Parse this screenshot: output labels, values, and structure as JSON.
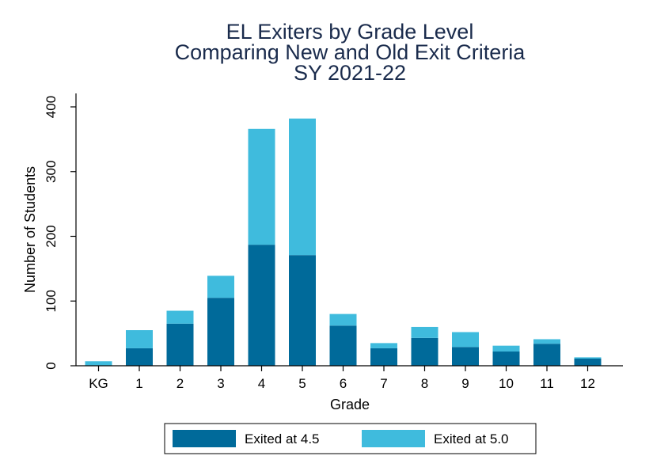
{
  "chart_data": {
    "type": "bar",
    "stacked": true,
    "title": [
      "EL Exiters by Grade Level",
      "Comparing New and Old Exit Criteria",
      "SY 2021-22"
    ],
    "xlabel": "Grade",
    "ylabel": "Number of Students",
    "ylim": [
      0,
      400
    ],
    "yticks": [
      0,
      100,
      200,
      300,
      400
    ],
    "categories": [
      "KG",
      "1",
      "2",
      "3",
      "4",
      "5",
      "6",
      "7",
      "8",
      "9",
      "10",
      "11",
      "12"
    ],
    "series": [
      {
        "name": "Exited at 4.5",
        "color": "#006a9a",
        "values": [
          0,
          27,
          65,
          105,
          187,
          171,
          62,
          27,
          43,
          29,
          22,
          34,
          11
        ]
      },
      {
        "name": "Exited at 5.0",
        "color": "#3fbbdd",
        "values": [
          7,
          28,
          20,
          34,
          179,
          211,
          18,
          8,
          17,
          23,
          9,
          7,
          2
        ]
      }
    ],
    "grid": false,
    "legend": "bottom"
  }
}
